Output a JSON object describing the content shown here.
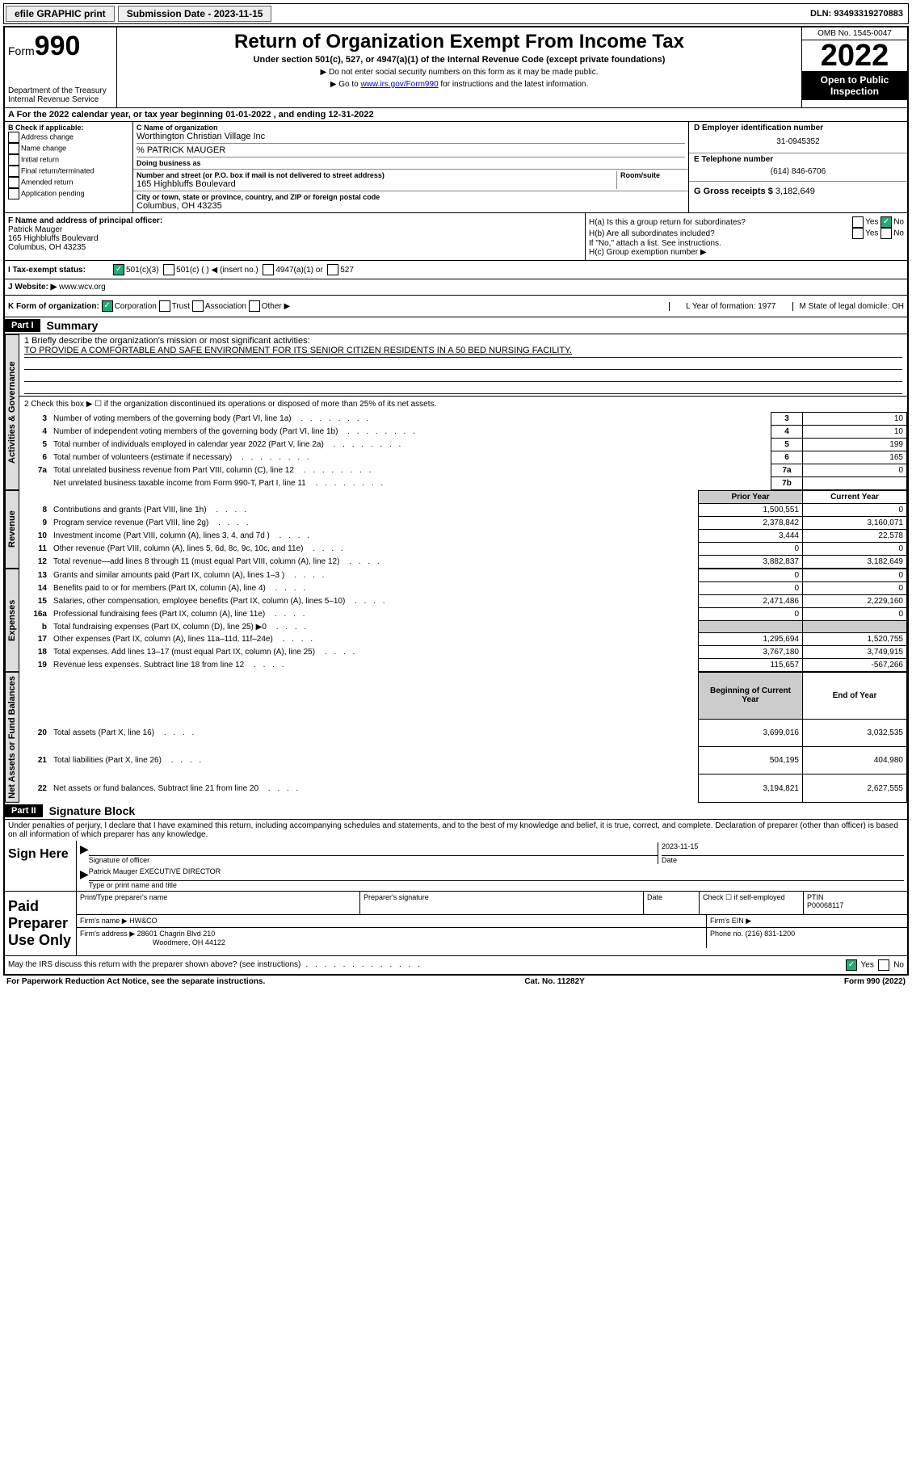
{
  "topbar": {
    "efile": "efile GRAPHIC print",
    "submission_label": "Submission Date - 2023-11-15",
    "dln": "DLN: 93493319270883"
  },
  "header": {
    "form_label": "Form",
    "form_num": "990",
    "dept": "Department of the Treasury\nInternal Revenue Service",
    "title": "Return of Organization Exempt From Income Tax",
    "subtitle": "Under section 501(c), 527, or 4947(a)(1) of the Internal Revenue Code (except private foundations)",
    "note1": "▶ Do not enter social security numbers on this form as it may be made public.",
    "note2_pre": "▶ Go to ",
    "note2_link": "www.irs.gov/Form990",
    "note2_post": " for instructions and the latest information.",
    "omb": "OMB No. 1545-0047",
    "year": "2022",
    "inspect": "Open to Public Inspection"
  },
  "rowA": "A  For the 2022 calendar year, or tax year beginning 01-01-2022    , and ending 12-31-2022",
  "colB": {
    "label": "B Check if applicable:",
    "opts": [
      "Address change",
      "Name change",
      "Initial return",
      "Final return/terminated",
      "Amended return",
      "Application pending"
    ]
  },
  "colC": {
    "name_label": "C Name of organization",
    "name": "Worthington Christian Village Inc",
    "care_of": "% PATRICK MAUGER",
    "dba_label": "Doing business as",
    "addr_label": "Number and street (or P.O. box if mail is not delivered to street address)",
    "room_label": "Room/suite",
    "addr": "165 Highbluffs Boulevard",
    "city_label": "City or town, state or province, country, and ZIP or foreign postal code",
    "city": "Columbus, OH  43235"
  },
  "colD": {
    "label": "D Employer identification number",
    "ein": "31-0945352"
  },
  "colE": {
    "label": "E Telephone number",
    "phone": "(614) 846-6706"
  },
  "colG": {
    "label": "G Gross receipts $",
    "val": "3,182,649"
  },
  "colF": {
    "label": "F Name and address of principal officer:",
    "name": "Patrick Mauger",
    "addr1": "165 Highbluffs Boulevard",
    "addr2": "Columbus, OH  43235"
  },
  "colH": {
    "a": "H(a)  Is this a group return for subordinates?",
    "a_no": "No",
    "b": "H(b)  Are all subordinates included?",
    "b_note": "If \"No,\" attach a list. See instructions.",
    "c": "H(c)  Group exemption number ▶"
  },
  "rowI": {
    "label": "I  Tax-exempt status:",
    "opt1": "501(c)(3)",
    "opt2": "501(c) (  ) ◀ (insert no.)",
    "opt3": "4947(a)(1) or",
    "opt4": "527"
  },
  "rowJ": {
    "label": "J  Website: ▶",
    "url": "www.wcv.org"
  },
  "rowK": {
    "label": "K Form of organization:",
    "opts": [
      "Corporation",
      "Trust",
      "Association",
      "Other ▶"
    ],
    "L": "L Year of formation: 1977",
    "M": "M State of legal domicile: OH"
  },
  "parts": {
    "p1_header": "Part I",
    "p1_title": "Summary",
    "p2_header": "Part II",
    "p2_title": "Signature Block"
  },
  "sections": {
    "gov": "Activities & Governance",
    "rev": "Revenue",
    "exp": "Expenses",
    "net": "Net Assets or Fund Balances"
  },
  "summary": {
    "line1_label": "1  Briefly describe the organization's mission or most significant activities:",
    "line1_text": "TO PROVIDE A COMFORTABLE AND SAFE ENVIRONMENT FOR ITS SENIOR CITIZEN RESIDENTS IN A 50 BED NURSING FACILITY.",
    "line2": "2  Check this box ▶ ☐  if the organization discontinued its operations or disposed of more than 25% of its net assets.",
    "rows_gov": [
      {
        "n": "3",
        "label": "Number of voting members of the governing body (Part VI, line 1a)",
        "box": "3",
        "val": "10"
      },
      {
        "n": "4",
        "label": "Number of independent voting members of the governing body (Part VI, line 1b)",
        "box": "4",
        "val": "10"
      },
      {
        "n": "5",
        "label": "Total number of individuals employed in calendar year 2022 (Part V, line 2a)",
        "box": "5",
        "val": "199"
      },
      {
        "n": "6",
        "label": "Total number of volunteers (estimate if necessary)",
        "box": "6",
        "val": "165"
      },
      {
        "n": "7a",
        "label": "Total unrelated business revenue from Part VIII, column (C), line 12",
        "box": "7a",
        "val": "0"
      },
      {
        "n": "",
        "label": "Net unrelated business taxable income from Form 990-T, Part I, line 11",
        "box": "7b",
        "val": ""
      }
    ],
    "hdr_prior": "Prior Year",
    "hdr_current": "Current Year",
    "rows_rev": [
      {
        "n": "8",
        "label": "Contributions and grants (Part VIII, line 1h)",
        "prior": "1,500,551",
        "cur": "0"
      },
      {
        "n": "9",
        "label": "Program service revenue (Part VIII, line 2g)",
        "prior": "2,378,842",
        "cur": "3,160,071"
      },
      {
        "n": "10",
        "label": "Investment income (Part VIII, column (A), lines 3, 4, and 7d )",
        "prior": "3,444",
        "cur": "22,578"
      },
      {
        "n": "11",
        "label": "Other revenue (Part VIII, column (A), lines 5, 6d, 8c, 9c, 10c, and 11e)",
        "prior": "0",
        "cur": "0"
      },
      {
        "n": "12",
        "label": "Total revenue—add lines 8 through 11 (must equal Part VIII, column (A), line 12)",
        "prior": "3,882,837",
        "cur": "3,182,649"
      }
    ],
    "rows_exp": [
      {
        "n": "13",
        "label": "Grants and similar amounts paid (Part IX, column (A), lines 1–3 )",
        "prior": "0",
        "cur": "0"
      },
      {
        "n": "14",
        "label": "Benefits paid to or for members (Part IX, column (A), line 4)",
        "prior": "0",
        "cur": "0"
      },
      {
        "n": "15",
        "label": "Salaries, other compensation, employee benefits (Part IX, column (A), lines 5–10)",
        "prior": "2,471,486",
        "cur": "2,229,160"
      },
      {
        "n": "16a",
        "label": "Professional fundraising fees (Part IX, column (A), line 11e)",
        "prior": "0",
        "cur": "0"
      },
      {
        "n": "b",
        "label": "Total fundraising expenses (Part IX, column (D), line 25) ▶0",
        "prior": "shaded",
        "cur": "shaded"
      },
      {
        "n": "17",
        "label": "Other expenses (Part IX, column (A), lines 11a–11d, 11f–24e)",
        "prior": "1,295,694",
        "cur": "1,520,755"
      },
      {
        "n": "18",
        "label": "Total expenses. Add lines 13–17 (must equal Part IX, column (A), line 25)",
        "prior": "3,767,180",
        "cur": "3,749,915"
      },
      {
        "n": "19",
        "label": "Revenue less expenses. Subtract line 18 from line 12",
        "prior": "115,657",
        "cur": "-567,266"
      }
    ],
    "hdr_begin": "Beginning of Current Year",
    "hdr_end": "End of Year",
    "rows_net": [
      {
        "n": "20",
        "label": "Total assets (Part X, line 16)",
        "prior": "3,699,016",
        "cur": "3,032,535"
      },
      {
        "n": "21",
        "label": "Total liabilities (Part X, line 26)",
        "prior": "504,195",
        "cur": "404,980"
      },
      {
        "n": "22",
        "label": "Net assets or fund balances. Subtract line 21 from line 20",
        "prior": "3,194,821",
        "cur": "2,627,555"
      }
    ]
  },
  "sig": {
    "declaration": "Under penalties of perjury, I declare that I have examined this return, including accompanying schedules and statements, and to the best of my knowledge and belief, it is true, correct, and complete. Declaration of preparer (other than officer) is based on all information of which preparer has any knowledge.",
    "sign_here": "Sign Here",
    "sig_officer": "Signature of officer",
    "date": "Date",
    "date_val": "2023-11-15",
    "officer": "Patrick Mauger  EXECUTIVE DIRECTOR",
    "officer_label": "Type or print name and title",
    "paid": "Paid Preparer Use Only",
    "prep_name_label": "Print/Type preparer's name",
    "prep_sig_label": "Preparer's signature",
    "check_self": "Check ☐ if self-employed",
    "ptin_label": "PTIN",
    "ptin": "P00068117",
    "firm_name_label": "Firm's name    ▶",
    "firm_name": "HW&CO",
    "firm_ein_label": "Firm's EIN ▶",
    "firm_addr_label": "Firm's address ▶",
    "firm_addr1": "28601 Chagrin Blvd 210",
    "firm_addr2": "Woodmere, OH  44122",
    "firm_phone_label": "Phone no.",
    "firm_phone": "(216) 831-1200",
    "may_irs": "May the IRS discuss this return with the preparer shown above? (see instructions)",
    "yes": "Yes",
    "no": "No"
  },
  "footer": {
    "left": "For Paperwork Reduction Act Notice, see the separate instructions.",
    "mid": "Cat. No. 11282Y",
    "right": "Form 990 (2022)"
  }
}
